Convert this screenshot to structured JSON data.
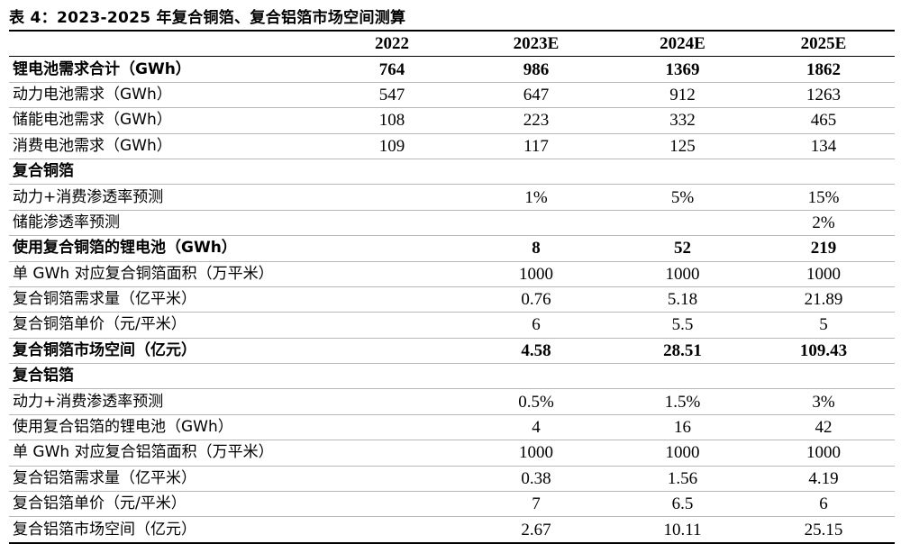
{
  "title": "表 4：2023-2025 年复合铜箔、复合铝箔市场空间测算",
  "columns": [
    "",
    "2022",
    "2023E",
    "2024E",
    "2025E"
  ],
  "rows": [
    {
      "label": "锂电池需求合计（GWh）",
      "values": [
        "764",
        "986",
        "1369",
        "1862"
      ],
      "bold": true
    },
    {
      "label": "动力电池需求（GWh）",
      "values": [
        "547",
        "647",
        "912",
        "1263"
      ],
      "bold": false
    },
    {
      "label": "储能电池需求（GWh）",
      "values": [
        "108",
        "223",
        "332",
        "465"
      ],
      "bold": false
    },
    {
      "label": "消费电池需求（GWh）",
      "values": [
        "109",
        "117",
        "125",
        "134"
      ],
      "bold": false
    },
    {
      "label": "复合铜箔",
      "values": [
        "",
        "",
        "",
        ""
      ],
      "bold": true
    },
    {
      "label": "动力+消费渗透率预测",
      "values": [
        "",
        "1%",
        "5%",
        "15%"
      ],
      "bold": false
    },
    {
      "label": "储能渗透率预测",
      "values": [
        "",
        "",
        "",
        "2%"
      ],
      "bold": false
    },
    {
      "label": "使用复合铜箔的锂电池（GWh）",
      "values": [
        "",
        "8",
        "52",
        "219"
      ],
      "bold": true
    },
    {
      "label": "单 GWh 对应复合铜箔面积（万平米）",
      "values": [
        "",
        "1000",
        "1000",
        "1000"
      ],
      "bold": false
    },
    {
      "label": "复合铜箔需求量（亿平米）",
      "values": [
        "",
        "0.76",
        "5.18",
        "21.89"
      ],
      "bold": false
    },
    {
      "label": "复合铜箔单价（元/平米）",
      "values": [
        "",
        "6",
        "5.5",
        "5"
      ],
      "bold": false
    },
    {
      "label": "复合铜箔市场空间（亿元）",
      "values": [
        "",
        "4.58",
        "28.51",
        "109.43"
      ],
      "bold": true
    },
    {
      "label": "复合铝箔",
      "values": [
        "",
        "",
        "",
        ""
      ],
      "bold": true
    },
    {
      "label": "动力+消费渗透率预测",
      "values": [
        "",
        "0.5%",
        "1.5%",
        "3%"
      ],
      "bold": false
    },
    {
      "label": "使用复合铝箔的锂电池（GWh）",
      "values": [
        "",
        "4",
        "16",
        "42"
      ],
      "bold": false
    },
    {
      "label": "单 GWh 对应复合铝箔面积（万平米）",
      "values": [
        "",
        "1000",
        "1000",
        "1000"
      ],
      "bold": false
    },
    {
      "label": "复合铝箔需求量（亿平米）",
      "values": [
        "",
        "0.38",
        "1.56",
        "4.19"
      ],
      "bold": false
    },
    {
      "label": "复合铝箔单价（元/平米）",
      "values": [
        "",
        "7",
        "6.5",
        "6"
      ],
      "bold": false
    },
    {
      "label": "复合铝箔市场空间（亿元）",
      "values": [
        "",
        "2.67",
        "10.11",
        "25.15"
      ],
      "bold": false
    }
  ]
}
